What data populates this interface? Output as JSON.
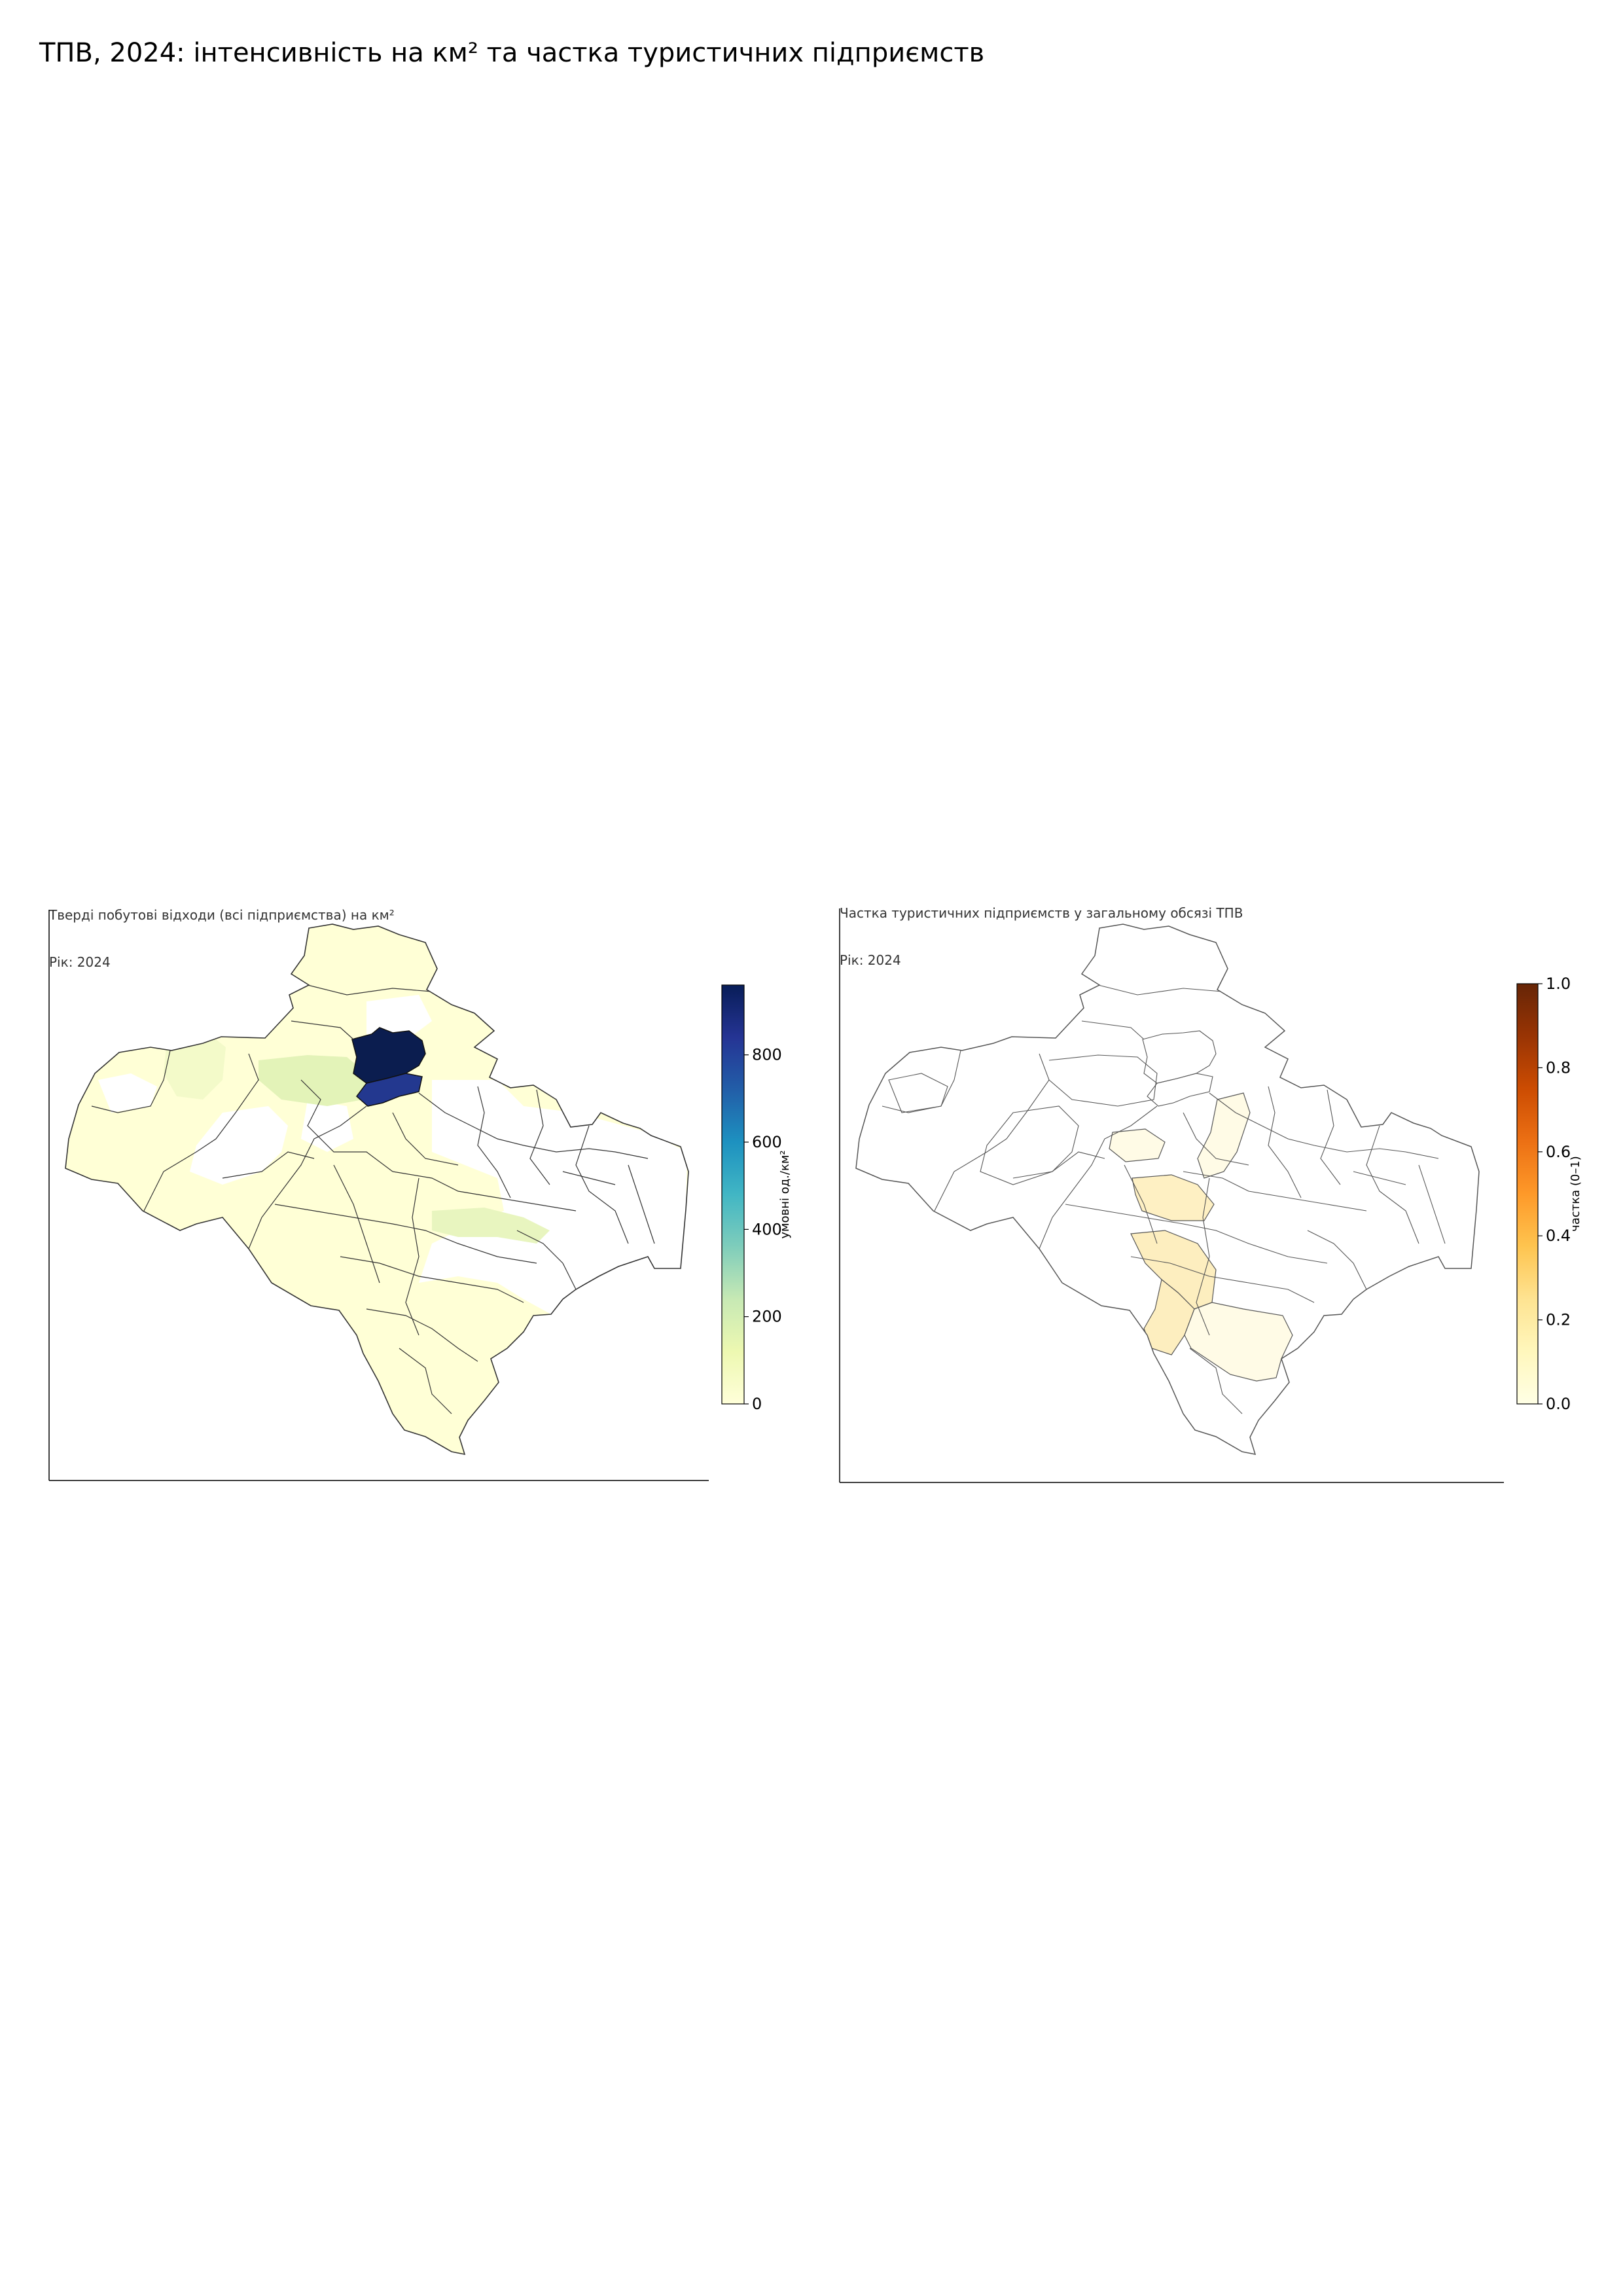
{
  "suptitle": "ТПВ, 2024: інтенсивність на км² та частка туристичних підприємств",
  "panels": [
    {
      "title_line1": "Тверді побутові відходи (всі підприємства) на км²",
      "title_line2": "Рік: 2024",
      "colorbar": {
        "label": "умовні од./км²",
        "colormap": "YlGnBu",
        "range": [
          0,
          960
        ],
        "ticks": [
          "0",
          "200",
          "400",
          "600",
          "800"
        ],
        "tick_values": [
          0,
          200,
          400,
          600,
          800
        ]
      },
      "colors": {
        "edge": "#333333",
        "no_data": "#ffffff",
        "max": "#0b1d4f",
        "high": "#23388f",
        "mid_low": "#e3f3b8",
        "low": "#ffffd6"
      }
    },
    {
      "title_line1": "Частка туристичних підприємств у загальному обсязі ТПВ",
      "title_line2": "Рік: 2024",
      "colorbar": {
        "label": "частка (0–1)",
        "colormap": "YlOrBr",
        "range": [
          0,
          1
        ],
        "ticks": [
          "0.0",
          "0.2",
          "0.4",
          "0.6",
          "0.8",
          "1.0"
        ],
        "tick_values": [
          0,
          0.2,
          0.4,
          0.6,
          0.8,
          1.0
        ]
      },
      "colors": {
        "edge": "#555555",
        "no_data": "#ffffff",
        "low": "#fef0c3",
        "very_low": "#fffbe6"
      }
    }
  ]
}
